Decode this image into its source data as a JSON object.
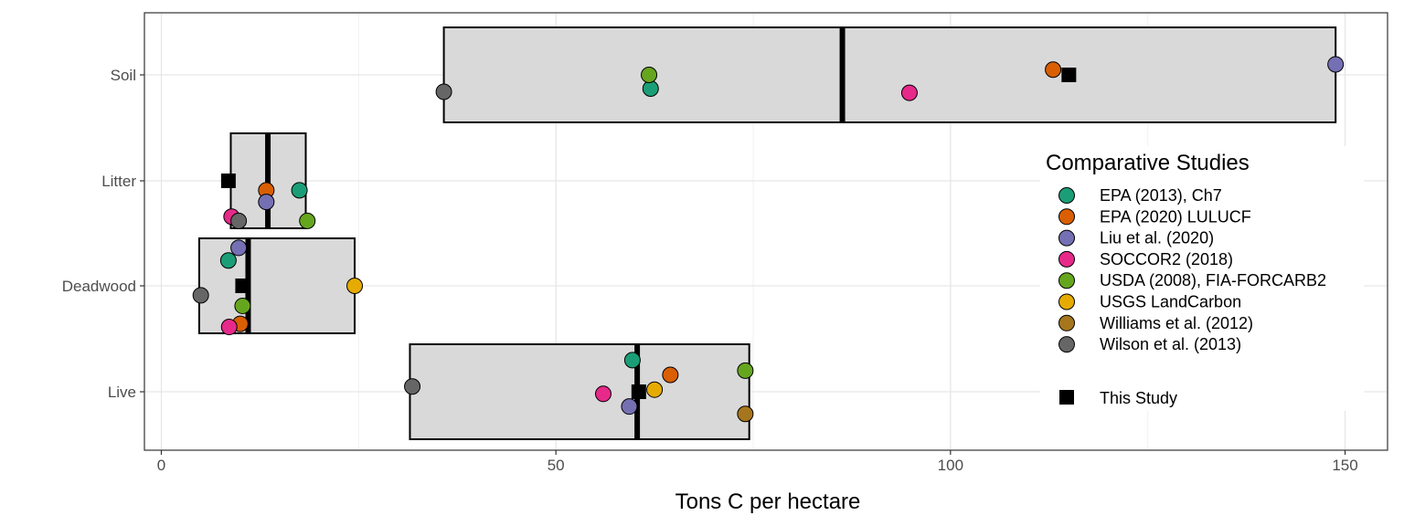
{
  "chart_data": {
    "type": "scatter",
    "title": "",
    "xlabel": "Tons C per hectare",
    "ylabel": "",
    "xlim": [
      -2,
      155
    ],
    "x_ticks": [
      0,
      50,
      100,
      150
    ],
    "x_tick_labels": [
      "0",
      "50",
      "100",
      "150"
    ],
    "grid": true,
    "legend_position": "right",
    "legend_title": "Comparative Studies",
    "categories": [
      "Live",
      "Deadwood",
      "Litter",
      "Soil"
    ],
    "ranges": [
      {
        "category": "Live",
        "min": 31.5,
        "max": 74.5,
        "median": 60.3
      },
      {
        "category": "Deadwood",
        "min": 4.8,
        "max": 24.5,
        "median": 11.0
      },
      {
        "category": "Litter",
        "min": 8.8,
        "max": 18.3,
        "median": 13.5
      },
      {
        "category": "Soil",
        "min": 35.8,
        "max": 148.8,
        "median": 86.3
      }
    ],
    "series": [
      {
        "name": "EPA (2013), Ch7",
        "color": "#1b9e77",
        "points": [
          {
            "category": "Live",
            "x": 59.7,
            "offset": 0.3
          },
          {
            "category": "Deadwood",
            "x": 8.5,
            "offset": 0.24
          },
          {
            "category": "Litter",
            "x": 17.5,
            "offset": -0.09
          },
          {
            "category": "Soil",
            "x": 62.0,
            "offset": -0.13
          }
        ]
      },
      {
        "name": "EPA (2020) LULUCF",
        "color": "#d95f02",
        "points": [
          {
            "category": "Live",
            "x": 64.5,
            "offset": 0.16
          },
          {
            "category": "Deadwood",
            "x": 10.0,
            "offset": -0.36
          },
          {
            "category": "Litter",
            "x": 13.3,
            "offset": -0.09
          },
          {
            "category": "Soil",
            "x": 113.0,
            "offset": 0.05
          }
        ]
      },
      {
        "name": "Liu et al. (2020)",
        "color": "#7570b3",
        "points": [
          {
            "category": "Live",
            "x": 59.3,
            "offset": -0.14
          },
          {
            "category": "Deadwood",
            "x": 9.8,
            "offset": 0.36
          },
          {
            "category": "Litter",
            "x": 13.3,
            "offset": -0.2
          },
          {
            "category": "Soil",
            "x": 148.8,
            "offset": 0.1
          }
        ]
      },
      {
        "name": "SOCCOR2 (2018)",
        "color": "#e7298a",
        "points": [
          {
            "category": "Live",
            "x": 56.0,
            "offset": -0.02
          },
          {
            "category": "Deadwood",
            "x": 8.6,
            "offset": -0.39
          },
          {
            "category": "Litter",
            "x": 8.9,
            "offset": -0.34
          },
          {
            "category": "Soil",
            "x": 94.8,
            "offset": -0.17
          }
        ]
      },
      {
        "name": "USDA (2008), FIA-FORCARB2",
        "color": "#66a61e",
        "points": [
          {
            "category": "Live",
            "x": 74.0,
            "offset": 0.2
          },
          {
            "category": "Deadwood",
            "x": 10.3,
            "offset": -0.19
          },
          {
            "category": "Litter",
            "x": 18.5,
            "offset": -0.38
          },
          {
            "category": "Soil",
            "x": 61.8,
            "offset": 0.0
          }
        ]
      },
      {
        "name": "USGS LandCarbon",
        "color": "#e6ab02",
        "points": [
          {
            "category": "Live",
            "x": 62.5,
            "offset": 0.02
          },
          {
            "category": "Deadwood",
            "x": 24.5,
            "offset": 0.0
          }
        ]
      },
      {
        "name": "Williams et al. (2012)",
        "color": "#a6761d",
        "points": [
          {
            "category": "Live",
            "x": 74.0,
            "offset": -0.21
          }
        ]
      },
      {
        "name": "Wilson et al. (2013)",
        "color": "#666666",
        "points": [
          {
            "category": "Live",
            "x": 31.8,
            "offset": 0.05
          },
          {
            "category": "Deadwood",
            "x": 5.0,
            "offset": -0.09
          },
          {
            "category": "Litter",
            "x": 9.8,
            "offset": -0.38
          },
          {
            "category": "Soil",
            "x": 35.8,
            "offset": -0.16
          }
        ]
      }
    ],
    "this_study": {
      "name": "This Study",
      "color": "#000000",
      "points": [
        {
          "category": "Live",
          "x": 60.5,
          "offset": 0.0
        },
        {
          "category": "Deadwood",
          "x": 10.3,
          "offset": 0.0
        },
        {
          "category": "Litter",
          "x": 8.5,
          "offset": 0.0
        },
        {
          "category": "Soil",
          "x": 115.0,
          "offset": 0.0
        }
      ]
    }
  }
}
